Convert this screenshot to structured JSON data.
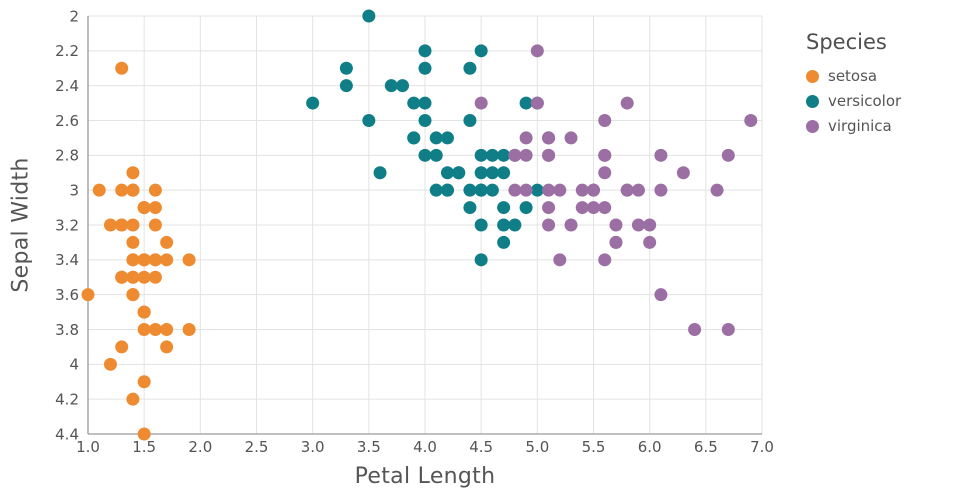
{
  "chart_data": {
    "type": "scatter",
    "title": "",
    "xlabel": "Petal Length",
    "ylabel": "Sepal Width",
    "legend_title": "Species",
    "legend_position": "right",
    "grid": true,
    "y_reversed": true,
    "x_domain": [
      1.0,
      7.0
    ],
    "y_domain": [
      2.0,
      4.4
    ],
    "x_tick_values": [
      1.0,
      1.5,
      2.0,
      2.5,
      3.0,
      3.5,
      4.0,
      4.5,
      5.0,
      5.5,
      6.0,
      6.5,
      7.0
    ],
    "x_tick_labels": [
      "1.0",
      "1.5",
      "2.0",
      "2.5",
      "3.0",
      "3.5",
      "4.0",
      "4.5",
      "5.0",
      "5.5",
      "6.0",
      "6.5",
      "7.0"
    ],
    "y_tick_values": [
      2.0,
      2.2,
      2.4,
      2.6,
      2.8,
      3.0,
      3.2,
      3.4,
      3.6,
      3.8,
      4.0,
      4.2,
      4.4
    ],
    "y_tick_labels": [
      "2",
      "2.2",
      "2.4",
      "2.6",
      "2.8",
      "3",
      "3.2",
      "3.4",
      "3.6",
      "3.8",
      "4",
      "4.2",
      "4.4"
    ],
    "colors": {
      "grid": "#e3e3e3",
      "axis_line": "#9a9a9a",
      "text": "#545454",
      "background": "#ffffff"
    },
    "series": [
      {
        "name": "setosa",
        "color": "#ee8b31",
        "points": [
          [
            1.4,
            3.5
          ],
          [
            1.4,
            3.0
          ],
          [
            1.3,
            3.2
          ],
          [
            1.5,
            3.1
          ],
          [
            1.4,
            3.6
          ],
          [
            1.7,
            3.9
          ],
          [
            1.4,
            3.4
          ],
          [
            1.5,
            3.4
          ],
          [
            1.4,
            2.9
          ],
          [
            1.5,
            3.1
          ],
          [
            1.5,
            3.7
          ],
          [
            1.6,
            3.4
          ],
          [
            1.4,
            3.0
          ],
          [
            1.1,
            3.0
          ],
          [
            1.2,
            4.0
          ],
          [
            1.5,
            4.4
          ],
          [
            1.3,
            3.9
          ],
          [
            1.4,
            3.5
          ],
          [
            1.7,
            3.8
          ],
          [
            1.5,
            3.8
          ],
          [
            1.7,
            3.4
          ],
          [
            1.5,
            3.7
          ],
          [
            1.0,
            3.6
          ],
          [
            1.7,
            3.3
          ],
          [
            1.9,
            3.4
          ],
          [
            1.6,
            3.0
          ],
          [
            1.6,
            3.4
          ],
          [
            1.5,
            3.5
          ],
          [
            1.4,
            3.4
          ],
          [
            1.6,
            3.2
          ],
          [
            1.6,
            3.1
          ],
          [
            1.5,
            3.4
          ],
          [
            1.5,
            4.1
          ],
          [
            1.4,
            4.2
          ],
          [
            1.5,
            3.1
          ],
          [
            1.2,
            3.2
          ],
          [
            1.3,
            3.5
          ],
          [
            1.4,
            3.6
          ],
          [
            1.3,
            3.0
          ],
          [
            1.5,
            3.4
          ],
          [
            1.3,
            3.5
          ],
          [
            1.3,
            2.3
          ],
          [
            1.3,
            3.2
          ],
          [
            1.6,
            3.5
          ],
          [
            1.9,
            3.8
          ],
          [
            1.4,
            3.0
          ],
          [
            1.6,
            3.8
          ],
          [
            1.4,
            3.2
          ],
          [
            1.5,
            3.7
          ],
          [
            1.4,
            3.3
          ]
        ]
      },
      {
        "name": "versicolor",
        "color": "#0f7e87",
        "points": [
          [
            4.7,
            3.2
          ],
          [
            4.5,
            3.2
          ],
          [
            4.9,
            3.1
          ],
          [
            4.0,
            2.3
          ],
          [
            4.6,
            2.8
          ],
          [
            4.5,
            2.8
          ],
          [
            4.7,
            3.3
          ],
          [
            3.3,
            2.4
          ],
          [
            4.6,
            2.9
          ],
          [
            3.9,
            2.7
          ],
          [
            3.5,
            2.0
          ],
          [
            4.2,
            3.0
          ],
          [
            4.0,
            2.2
          ],
          [
            4.7,
            2.9
          ],
          [
            3.6,
            2.9
          ],
          [
            4.4,
            3.1
          ],
          [
            4.5,
            3.0
          ],
          [
            4.1,
            2.7
          ],
          [
            4.5,
            2.2
          ],
          [
            3.9,
            2.5
          ],
          [
            4.8,
            3.2
          ],
          [
            4.0,
            2.8
          ],
          [
            4.9,
            2.5
          ],
          [
            4.7,
            2.8
          ],
          [
            4.3,
            2.9
          ],
          [
            4.4,
            3.0
          ],
          [
            4.8,
            2.8
          ],
          [
            5.0,
            3.0
          ],
          [
            4.5,
            2.9
          ],
          [
            3.5,
            2.6
          ],
          [
            3.8,
            2.4
          ],
          [
            3.7,
            2.4
          ],
          [
            3.9,
            2.7
          ],
          [
            5.1,
            2.7
          ],
          [
            4.5,
            3.0
          ],
          [
            4.5,
            3.4
          ],
          [
            4.7,
            3.1
          ],
          [
            4.4,
            2.3
          ],
          [
            4.1,
            3.0
          ],
          [
            4.0,
            2.5
          ],
          [
            4.4,
            2.6
          ],
          [
            4.6,
            3.0
          ],
          [
            4.0,
            2.6
          ],
          [
            3.3,
            2.3
          ],
          [
            4.2,
            2.7
          ],
          [
            4.2,
            3.0
          ],
          [
            4.2,
            2.9
          ],
          [
            4.3,
            2.9
          ],
          [
            3.0,
            2.5
          ],
          [
            4.1,
            2.8
          ]
        ]
      },
      {
        "name": "virginica",
        "color": "#9b6fa3",
        "points": [
          [
            6.0,
            3.3
          ],
          [
            5.1,
            2.7
          ],
          [
            5.9,
            3.0
          ],
          [
            5.6,
            2.9
          ],
          [
            5.8,
            3.0
          ],
          [
            6.6,
            3.0
          ],
          [
            4.5,
            2.5
          ],
          [
            6.3,
            2.9
          ],
          [
            5.8,
            2.5
          ],
          [
            6.1,
            3.6
          ],
          [
            5.1,
            3.2
          ],
          [
            5.3,
            2.7
          ],
          [
            5.5,
            3.0
          ],
          [
            5.0,
            2.5
          ],
          [
            5.1,
            2.8
          ],
          [
            5.3,
            3.2
          ],
          [
            5.5,
            3.0
          ],
          [
            6.7,
            3.8
          ],
          [
            6.9,
            2.6
          ],
          [
            5.0,
            2.2
          ],
          [
            5.7,
            3.2
          ],
          [
            4.9,
            2.8
          ],
          [
            6.7,
            2.8
          ],
          [
            4.9,
            2.7
          ],
          [
            5.7,
            3.3
          ],
          [
            6.0,
            3.2
          ],
          [
            4.8,
            2.8
          ],
          [
            4.9,
            3.0
          ],
          [
            5.6,
            2.8
          ],
          [
            5.8,
            3.0
          ],
          [
            6.1,
            2.8
          ],
          [
            6.4,
            3.8
          ],
          [
            5.6,
            2.8
          ],
          [
            5.1,
            2.8
          ],
          [
            5.6,
            2.6
          ],
          [
            6.1,
            3.0
          ],
          [
            5.6,
            3.4
          ],
          [
            5.5,
            3.1
          ],
          [
            4.8,
            3.0
          ],
          [
            5.4,
            3.1
          ],
          [
            5.6,
            3.1
          ],
          [
            5.1,
            3.1
          ],
          [
            5.1,
            2.7
          ],
          [
            5.9,
            3.2
          ],
          [
            5.7,
            3.3
          ],
          [
            5.2,
            3.0
          ],
          [
            5.0,
            2.5
          ],
          [
            5.2,
            3.4
          ],
          [
            5.4,
            3.0
          ],
          [
            5.1,
            3.0
          ]
        ]
      }
    ]
  }
}
